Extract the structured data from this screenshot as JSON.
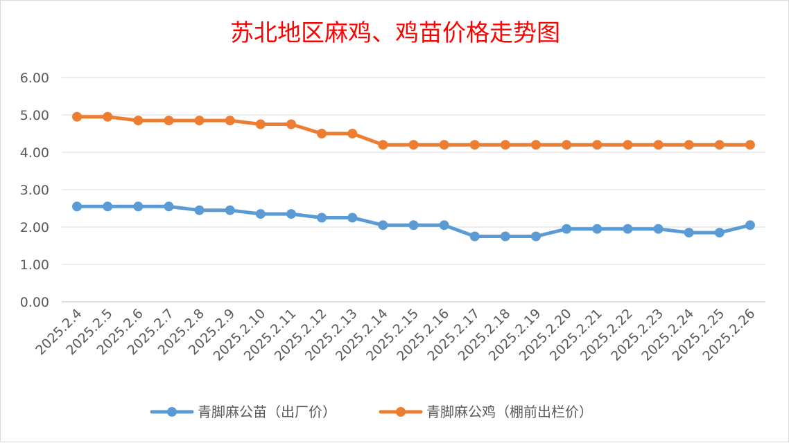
{
  "chart_data": {
    "type": "line",
    "title": "苏北地区麻鸡、鸡苗价格走势图",
    "xlabel": "",
    "ylabel": "",
    "ylim": [
      0,
      6
    ],
    "yticks": [
      "0.00",
      "1.00",
      "2.00",
      "3.00",
      "4.00",
      "5.00",
      "6.00"
    ],
    "grid": true,
    "legend_position": "bottom",
    "categories": [
      "2025.2.4",
      "2025.2.5",
      "2025.2.6",
      "2025.2.7",
      "2025.2.8",
      "2025.2.9",
      "2025.2.10",
      "2025.2.11",
      "2025.2.12",
      "2025.2.13",
      "2025.2.14",
      "2025.2.15",
      "2025.2.16",
      "2025.2.17",
      "2025.2.18",
      "2025.2.19",
      "2025.2.20",
      "2025.2.21",
      "2025.2.22",
      "2025.2.23",
      "2025.2.24",
      "2025.2.25",
      "2025.2.26"
    ],
    "series": [
      {
        "name": "青脚麻公苗（出厂价）",
        "color": "#5b9bd5",
        "values": [
          2.55,
          2.55,
          2.55,
          2.55,
          2.45,
          2.45,
          2.35,
          2.35,
          2.25,
          2.25,
          2.05,
          2.05,
          2.05,
          1.75,
          1.75,
          1.75,
          1.95,
          1.95,
          1.95,
          1.95,
          1.85,
          1.85,
          2.05
        ]
      },
      {
        "name": "青脚麻公鸡（棚前出栏价）",
        "color": "#ed7d31",
        "values": [
          4.95,
          4.95,
          4.85,
          4.85,
          4.85,
          4.85,
          4.75,
          4.75,
          4.5,
          4.5,
          4.2,
          4.2,
          4.2,
          4.2,
          4.2,
          4.2,
          4.2,
          4.2,
          4.2,
          4.2,
          4.2,
          4.2,
          4.2
        ]
      }
    ]
  }
}
